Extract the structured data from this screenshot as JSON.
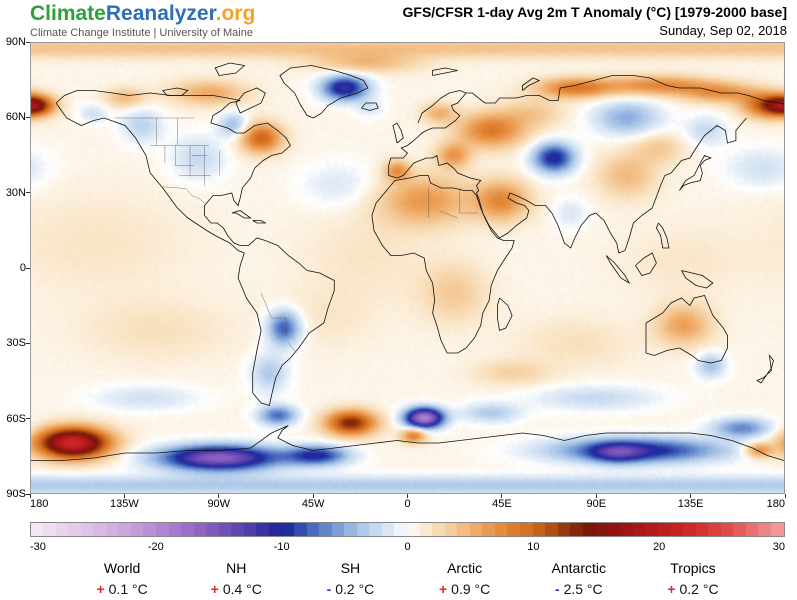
{
  "header": {
    "logo_part1": "Climate",
    "logo_part2": "Reanalyzer",
    "logo_part3": ".org",
    "logo_color1": "#2e9f3e",
    "logo_color2": "#2d6fb7",
    "logo_color3": "#f5a21f",
    "subtitle": "Climate Change Institute | University of Maine",
    "title": "GFS/CFSR 1-day Avg 2m T Anomaly (°C) [1979-2000 base]",
    "date": "Sunday, Sep 02, 2018"
  },
  "map_axes": {
    "lat_ticks": [
      "90N",
      "60N",
      "30N",
      "0",
      "30S",
      "60S",
      "90S"
    ],
    "lat_values": [
      90,
      60,
      30,
      0,
      -30,
      -60,
      -90
    ],
    "lon_ticks": [
      "180",
      "135W",
      "90W",
      "45W",
      "0",
      "45E",
      "90E",
      "135E",
      "180"
    ],
    "lon_values": [
      -180,
      -135,
      -90,
      -45,
      0,
      45,
      90,
      135,
      180
    ]
  },
  "stats": {
    "plus_color": "#e02828",
    "minus_color": "#2b3cc8",
    "items": [
      {
        "label": "World",
        "sign": "+",
        "value": "0.1 °C"
      },
      {
        "label": "NH",
        "sign": "+",
        "value": "0.4 °C"
      },
      {
        "label": "SH",
        "sign": "-",
        "value": "0.2 °C"
      },
      {
        "label": "Arctic",
        "sign": "+",
        "value": "0.9 °C"
      },
      {
        "label": "Antarctic",
        "sign": "-",
        "value": "2.5 °C"
      },
      {
        "label": "Tropics",
        "sign": "+",
        "value": "0.2 °C"
      }
    ]
  },
  "chart_data": {
    "type": "heatmap",
    "title": "GFS/CFSR 1-day Avg 2m T Anomaly (°C) [1979-2000 base]",
    "date": "Sunday, Sep 02, 2018",
    "units": "°C",
    "value_range": [
      -30,
      30
    ],
    "colorbar_ticks": [
      "-30",
      "-20",
      "-10",
      "0",
      "10",
      "20",
      "30"
    ],
    "colorbar_tick_values": [
      -30,
      -20,
      -10,
      0,
      10,
      20,
      30
    ],
    "regional_means": {
      "World": 0.1,
      "NH": 0.4,
      "SH": -0.2,
      "Arctic": 0.9,
      "Antarctic": -2.5,
      "Tropics": 0.2
    },
    "colormap": [
      [
        -30,
        "#f5ecf5"
      ],
      [
        -26,
        "#e2c6e8"
      ],
      [
        -22,
        "#c9a2dd"
      ],
      [
        -19,
        "#ab7fd1"
      ],
      [
        -16,
        "#8a5fc0"
      ],
      [
        -14,
        "#6a4bb4"
      ],
      [
        -12,
        "#4538aa"
      ],
      [
        -10.5,
        "#27279e"
      ],
      [
        -9.5,
        "#1e2f9e"
      ],
      [
        -8,
        "#3c5cb8"
      ],
      [
        -6,
        "#6f93d2"
      ],
      [
        -4,
        "#a3c1e6"
      ],
      [
        -2,
        "#cfe0f2"
      ],
      [
        -0.7,
        "#eaf1f9"
      ],
      [
        0,
        "#ffffff"
      ],
      [
        0.7,
        "#fdf4e6"
      ],
      [
        2,
        "#f9e2c0"
      ],
      [
        4,
        "#f4c48e"
      ],
      [
        6,
        "#eda35c"
      ],
      [
        8,
        "#e28432"
      ],
      [
        10,
        "#d2691c"
      ],
      [
        11.5,
        "#b14e13"
      ],
      [
        13,
        "#8a2f0a"
      ],
      [
        14.5,
        "#7c1708"
      ],
      [
        16,
        "#8c1212"
      ],
      [
        18,
        "#a31616"
      ],
      [
        20,
        "#bb1b1b"
      ],
      [
        23,
        "#d22a2a"
      ],
      [
        26,
        "#e25252"
      ],
      [
        28,
        "#ec7979"
      ],
      [
        30,
        "#f4a0a0"
      ]
    ],
    "base_anomaly": 0.6,
    "anomaly_blobs": [
      {
        "name": "chukotka-hot",
        "lon": -178,
        "lat": 65,
        "sx": 9,
        "sy": 4,
        "amp": 13
      },
      {
        "name": "ne-siberia-hot",
        "lon": 172,
        "lat": 65,
        "sx": 12,
        "sy": 5,
        "amp": 10
      },
      {
        "name": "e-siberia-coast",
        "lon": 150,
        "lat": 70,
        "sx": 18,
        "sy": 4,
        "amp": 6
      },
      {
        "name": "n-siberia-coast",
        "lon": 120,
        "lat": 73,
        "sx": 25,
        "sy": 4,
        "amp": 7
      },
      {
        "name": "w-siberia-coast",
        "lon": 80,
        "lat": 72,
        "sx": 18,
        "sy": 4,
        "amp": 8
      },
      {
        "name": "e-europe-warm",
        "lon": 40,
        "lat": 55,
        "sx": 16,
        "sy": 7,
        "amp": 8
      },
      {
        "name": "balkans-warm",
        "lon": 22,
        "lat": 45,
        "sx": 8,
        "sy": 5,
        "amp": 6
      },
      {
        "name": "scandinavia-warm",
        "lon": 15,
        "lat": 62,
        "sx": 8,
        "sy": 4,
        "amp": 4.5
      },
      {
        "name": "urals-warm",
        "lon": 60,
        "lat": 62,
        "sx": 15,
        "sy": 6,
        "amp": 3
      },
      {
        "name": "spain-warm",
        "lon": -5,
        "lat": 39,
        "sx": 6,
        "sy": 4,
        "amp": 6
      },
      {
        "name": "sahara-warm",
        "lon": 8,
        "lat": 27,
        "sx": 22,
        "sy": 10,
        "amp": 6
      },
      {
        "name": "arabia-warm",
        "lon": 45,
        "lat": 27,
        "sx": 13,
        "sy": 8,
        "amp": 7
      },
      {
        "name": "quebec-warm",
        "lon": -70,
        "lat": 52,
        "sx": 10,
        "sy": 6,
        "amp": 9.5
      },
      {
        "name": "arctic-canada-warm",
        "lon": -95,
        "lat": 70,
        "sx": 18,
        "sy": 5,
        "amp": 5
      },
      {
        "name": "nw-arctic-coast",
        "lon": -135,
        "lat": 68,
        "sx": 10,
        "sy": 4,
        "amp": 4
      },
      {
        "name": "n-greenland-warm",
        "lon": -20,
        "lat": 82,
        "sx": 25,
        "sy": 4,
        "amp": 4
      },
      {
        "name": "arctic-cap-warm",
        "lon": 0,
        "lat": 88,
        "sx": 999,
        "sy": 4,
        "amp": 3.5
      },
      {
        "name": "n-china-warm",
        "lon": 105,
        "lat": 37,
        "sx": 14,
        "sy": 9,
        "amp": 4
      },
      {
        "name": "ne-china-warm",
        "lon": 120,
        "lat": 48,
        "sx": 12,
        "sy": 6,
        "amp": 3
      },
      {
        "name": "australia-warm",
        "lon": 132,
        "lat": -23,
        "sx": 13,
        "sy": 8,
        "amp": 5.5
      },
      {
        "name": "c-africa-warm",
        "lon": 22,
        "lat": -10,
        "sx": 16,
        "sy": 12,
        "amp": 3
      },
      {
        "name": "s-pacific-hotspot",
        "lon": -160,
        "lat": -70,
        "sx": 17,
        "sy": 6,
        "amp": 22
      },
      {
        "name": "s-atlantic-hotspot",
        "lon": -27,
        "lat": -62,
        "sx": 12,
        "sy": 5,
        "amp": 13
      },
      {
        "name": "antarctic-coast-warm",
        "lon": 3,
        "lat": -67,
        "sx": 6,
        "sy": 3,
        "amp": 8
      },
      {
        "name": "ross-edge-warm",
        "lon": 168,
        "lat": -73,
        "sx": 7,
        "sy": 3,
        "amp": 7
      },
      {
        "name": "s-indian-warm-band",
        "lon": 50,
        "lat": -42,
        "sx": 18,
        "sy": 5,
        "amp": 2.5
      },
      {
        "name": "pacific-tint",
        "lon": -150,
        "lat": 10,
        "sx": 45,
        "sy": 20,
        "amp": 1.2
      },
      {
        "name": "atlantic-tint",
        "lon": -20,
        "lat": 5,
        "sx": 30,
        "sy": 18,
        "amp": 1.2
      },
      {
        "name": "s-indian-tint",
        "lon": 80,
        "lat": -30,
        "sx": 28,
        "sy": 10,
        "amp": 1.5
      },
      {
        "name": "w-pacific-tint",
        "lon": 130,
        "lat": 2,
        "sx": 28,
        "sy": 14,
        "amp": 1
      },
      {
        "name": "se-pacific-tint",
        "lon": -120,
        "lat": -25,
        "sx": 35,
        "sy": 12,
        "amp": 1.5
      },
      {
        "name": "brazil-tint",
        "lon": -40,
        "lat": -20,
        "sx": 25,
        "sy": 12,
        "amp": 1
      },
      {
        "name": "bc-yukon-cool",
        "lon": -127,
        "lat": 57,
        "sx": 10,
        "sy": 7,
        "amp": -3.5
      },
      {
        "name": "c-us-cool",
        "lon": -100,
        "lat": 44,
        "sx": 13,
        "sy": 9,
        "amp": -3
      },
      {
        "name": "hudson-bay-cool",
        "lon": -83,
        "lat": 57,
        "sx": 7,
        "sy": 5,
        "amp": -5
      },
      {
        "name": "alaska-int-cool",
        "lon": -150,
        "lat": 62,
        "sx": 7,
        "sy": 4,
        "amp": -2.5
      },
      {
        "name": "greenland-sea-cold",
        "lon": -30,
        "lat": 72,
        "sx": 11,
        "sy": 5,
        "amp": -12
      },
      {
        "name": "kazakhstan-cold",
        "lon": 70,
        "lat": 44,
        "sx": 10,
        "sy": 6,
        "amp": -11
      },
      {
        "name": "c-siberia-cool",
        "lon": 105,
        "lat": 60,
        "sx": 16,
        "sy": 7,
        "amp": -5.5
      },
      {
        "name": "okhotsk-cool",
        "lon": 143,
        "lat": 55,
        "sx": 10,
        "sy": 6,
        "amp": -3
      },
      {
        "name": "paraguay-cold",
        "lon": -59,
        "lat": -24,
        "sx": 8,
        "sy": 7,
        "amp": -9
      },
      {
        "name": "argentina-cool",
        "lon": -66,
        "lat": -42,
        "sx": 9,
        "sy": 8,
        "amp": -4
      },
      {
        "name": "n-atlantic-cool",
        "lon": -33,
        "lat": 33,
        "sx": 18,
        "sy": 9,
        "amp": -2
      },
      {
        "name": "n-pacific-cool",
        "lon": 170,
        "lat": 40,
        "sx": 18,
        "sy": 8,
        "amp": -2.5
      },
      {
        "name": "india-neutral",
        "lon": 78,
        "lat": 22,
        "sx": 8,
        "sy": 6,
        "amp": -2
      },
      {
        "name": "iceland-cool",
        "lon": -18,
        "lat": 64,
        "sx": 7,
        "sy": 4,
        "amp": -2
      },
      {
        "name": "w-antarctica-cold",
        "lon": -90,
        "lat": -76,
        "sx": 28,
        "sy": 5,
        "amp": -17
      },
      {
        "name": "weddell-cold",
        "lon": -43,
        "lat": -75,
        "sx": 15,
        "sy": 4,
        "amp": -10
      },
      {
        "name": "e-antarctica-cold",
        "lon": 110,
        "lat": -73,
        "sx": 40,
        "sy": 5,
        "amp": -11
      },
      {
        "name": "e-antarctica-core",
        "lon": 100,
        "lat": -74,
        "sx": 12,
        "sy": 4,
        "amp": -6
      },
      {
        "name": "queen-maud-cold",
        "lon": 8,
        "lat": -60,
        "sx": 9,
        "sy": 4,
        "amp": -20
      },
      {
        "name": "drake-cold",
        "lon": -62,
        "lat": -59,
        "sx": 9,
        "sy": 4,
        "amp": -8
      },
      {
        "name": "ross-sea-cold",
        "lon": 160,
        "lat": -64,
        "sx": 14,
        "sy": 4,
        "amp": -7
      },
      {
        "name": "s-ocean-cool-1",
        "lon": 40,
        "lat": -58,
        "sx": 14,
        "sy": 4,
        "amp": -4
      },
      {
        "name": "tasmania-cool",
        "lon": 145,
        "lat": -39,
        "sx": 7,
        "sy": 5,
        "amp": -4.5
      },
      {
        "name": "antarctic-int-cool",
        "lon": 0,
        "lat": -87,
        "sx": 999,
        "sy": 4,
        "amp": -4
      },
      {
        "name": "s-pacific-cool-band",
        "lon": -125,
        "lat": -52,
        "sx": 25,
        "sy": 5,
        "amp": -2.5
      },
      {
        "name": "s-indian-cool-band",
        "lon": 90,
        "lat": -52,
        "sx": 30,
        "sy": 5,
        "amp": -3
      }
    ]
  }
}
